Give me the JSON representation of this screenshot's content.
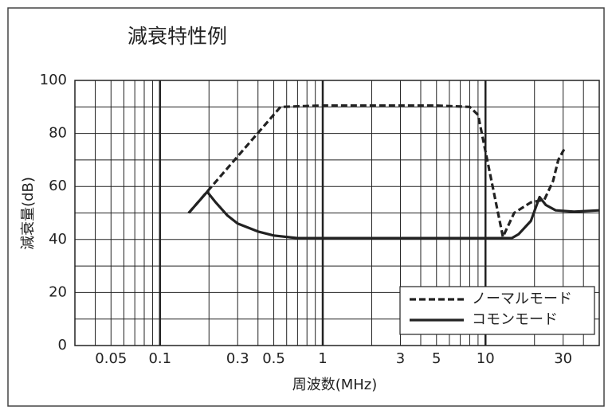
{
  "chart_data": {
    "type": "line",
    "title": "減衰特性例",
    "xlabel": "周波数(MHz)",
    "ylabel": "減衰量(dB)",
    "xscale": "log",
    "xlim": [
      0.03,
      50
    ],
    "ylim": [
      0,
      100
    ],
    "xticks": [
      0.05,
      0.1,
      0.3,
      0.5,
      1,
      3,
      5,
      10,
      30
    ],
    "yticks": [
      0,
      20,
      40,
      60,
      80,
      100
    ],
    "x_grid": [
      0.03,
      0.04,
      0.05,
      0.06,
      0.07,
      0.08,
      0.09,
      0.1,
      0.2,
      0.3,
      0.4,
      0.5,
      0.6,
      0.7,
      0.8,
      0.9,
      1,
      2,
      3,
      4,
      5,
      6,
      7,
      8,
      9,
      10,
      20,
      30,
      40,
      50
    ],
    "y_grid": [
      0,
      10,
      20,
      30,
      40,
      50,
      60,
      70,
      80,
      90,
      100
    ],
    "legend": "lower right",
    "series": [
      {
        "name": "ノーマルモード",
        "color": "#222222",
        "dashed": true,
        "x": [
          0.15,
          0.55,
          1,
          5,
          8,
          9,
          12.8,
          15,
          19,
          23,
          26,
          28,
          31
        ],
        "values": [
          50,
          90,
          90.5,
          90.5,
          90,
          87,
          41,
          50,
          54,
          55,
          62,
          70,
          75
        ]
      },
      {
        "name": "コモンモード",
        "color": "#222222",
        "dashed": false,
        "x": [
          0.15,
          0.195,
          0.22,
          0.26,
          0.3,
          0.4,
          0.5,
          0.7,
          14.5,
          16,
          19,
          21.5,
          23.5,
          27,
          35,
          50
        ],
        "values": [
          50,
          58,
          54,
          49,
          46,
          43,
          41.5,
          40.5,
          40.5,
          42,
          47,
          56,
          53,
          51,
          50.5,
          51
        ]
      }
    ]
  }
}
